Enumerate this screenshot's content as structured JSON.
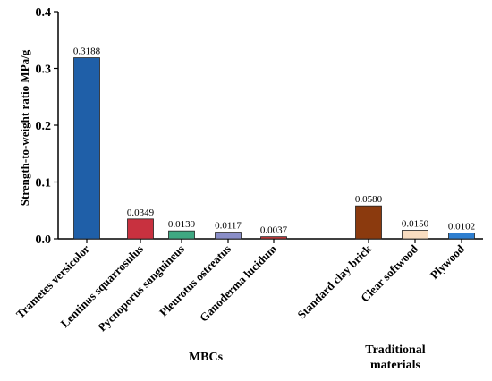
{
  "chart_data": {
    "type": "bar",
    "ylabel": "Strength-to-weight ratio MPa/g",
    "xlabel": "",
    "ylim": [
      0,
      0.4
    ],
    "yticks": [
      "0.0",
      "0.1",
      "0.2",
      "0.3",
      "0.4"
    ],
    "ytick_values": [
      0,
      0.1,
      0.2,
      0.3,
      0.4
    ],
    "grid": false,
    "categories": [
      "Trametes versicolor",
      "Lentinus squarrosulus",
      "Pycnoporus sanguineus",
      "Pleurotus ostreatus",
      "Ganoderma lucidum",
      "Standard clay brick",
      "Clear softwood",
      "Plywood"
    ],
    "values": [
      0.3188,
      0.0349,
      0.0139,
      0.0117,
      0.0037,
      0.058,
      0.015,
      0.0102
    ],
    "value_labels": [
      "0.3188",
      "0.0349",
      "0.0139",
      "0.0117",
      "0.0037",
      "0.0580",
      "0.0150",
      "0.0102"
    ],
    "colors": [
      "#1f5fa8",
      "#c8313f",
      "#3fa882",
      "#8a8ec8",
      "#c0393b",
      "#8b3a0e",
      "#f8dcc0",
      "#2f7fd0"
    ],
    "groups": [
      {
        "label": "MBCs",
        "lines": [
          "MBCs"
        ]
      },
      {
        "label": "Traditional materials",
        "lines": [
          "Traditional",
          "materials"
        ]
      }
    ]
  }
}
